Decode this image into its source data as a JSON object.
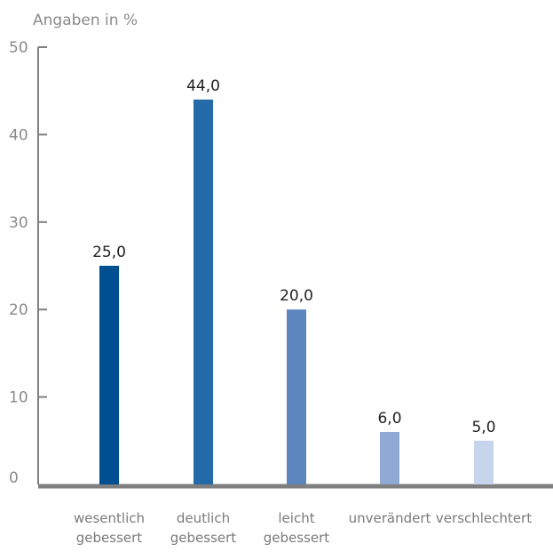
{
  "chart_data": {
    "type": "bar",
    "ylabel": "Angaben in %",
    "ylim": [
      0,
      50
    ],
    "yticks": [
      "0",
      "10",
      "20",
      "30",
      "40",
      "50"
    ],
    "categories": [
      [
        "wesentlich",
        "gebessert"
      ],
      [
        "deutlich",
        "gebessert"
      ],
      [
        "leicht",
        "gebessert"
      ],
      [
        "unverändert"
      ],
      [
        "verschlechtert"
      ]
    ],
    "values": [
      25.0,
      44.0,
      20.0,
      6.0,
      5.0
    ],
    "value_labels": [
      "25,0",
      "44,0",
      "20,0",
      "6,0",
      "5,0"
    ],
    "colors": [
      "#004f91",
      "#2469a8",
      "#5c86bd",
      "#8ea9d3",
      "#c6d4ec"
    ],
    "axis_color": "#7f7f7f",
    "grid": false
  }
}
